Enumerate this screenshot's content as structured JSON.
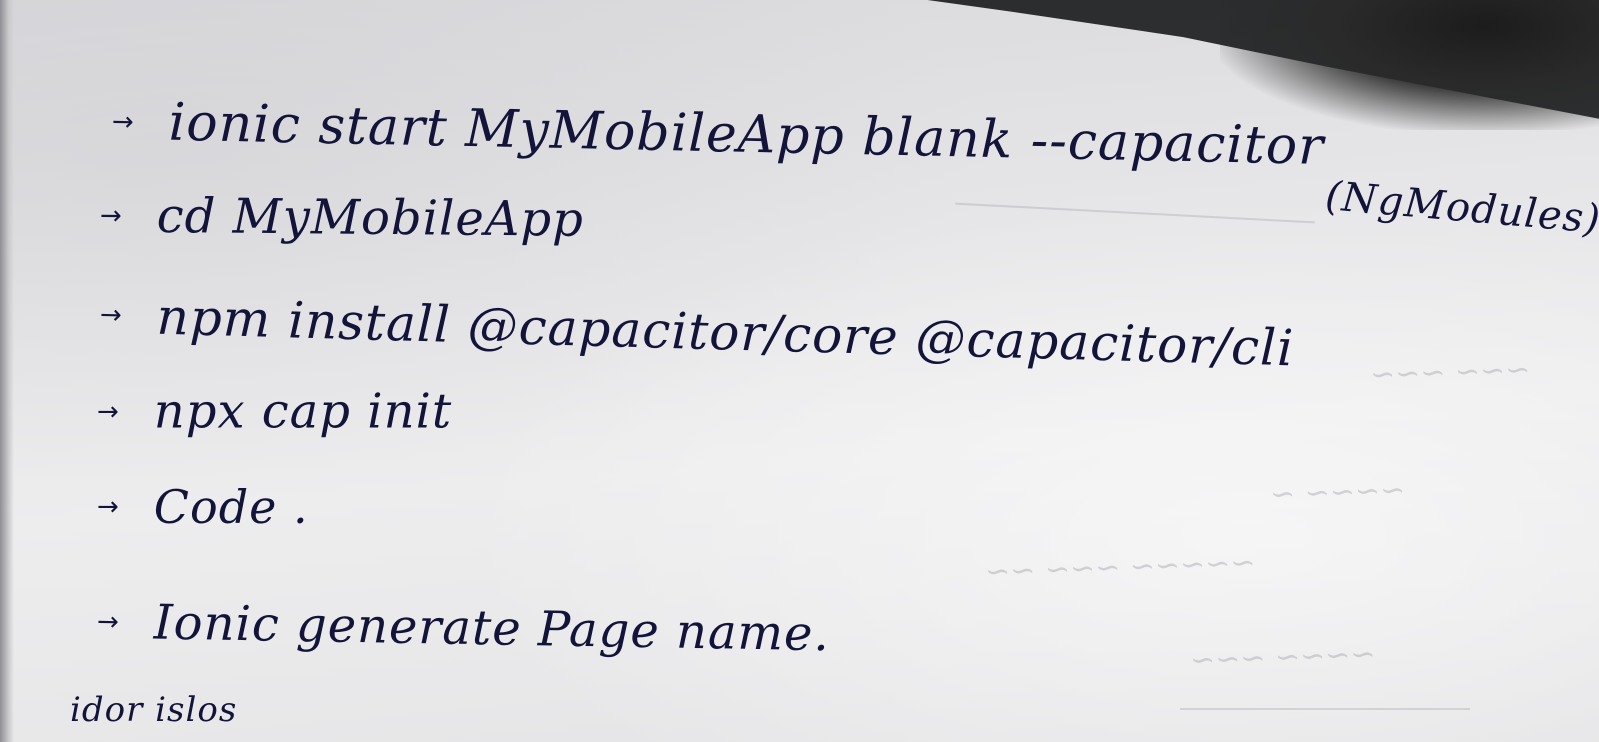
{
  "notes": {
    "lines": [
      {
        "arrow": "→",
        "text": "ionic start MyMobileApp blank --capacitor"
      },
      {
        "arrow": "→",
        "text": "cd MyMobileApp"
      },
      {
        "arrow": "→",
        "text": "npm install @capacitor/core @capacitor/cli"
      },
      {
        "arrow": "→",
        "text": "npx cap init"
      },
      {
        "arrow": "→",
        "text": "Code ."
      },
      {
        "arrow": "→",
        "text": "Ionic generate Page name."
      }
    ],
    "side_note": "(NgModules)",
    "bottom_partial": "idor islos"
  }
}
